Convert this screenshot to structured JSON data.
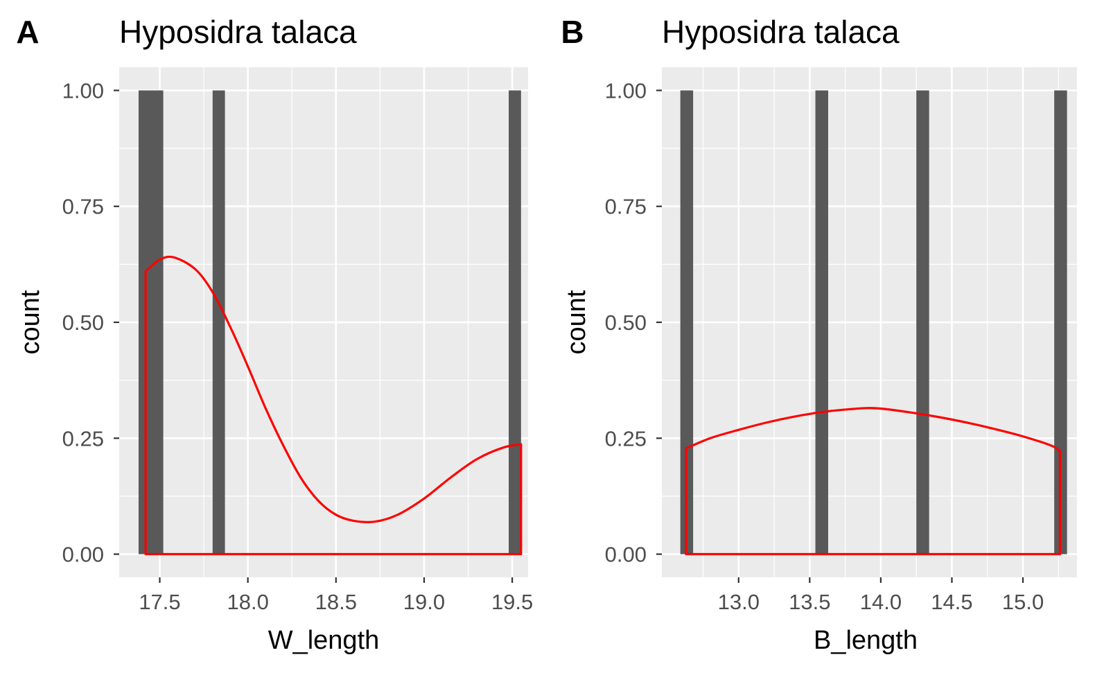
{
  "chart_data": [
    {
      "type": "bar",
      "tag": "A",
      "title": "Hyposidra talaca",
      "xlabel": "W_length",
      "ylabel": "count",
      "xlim": [
        17.27,
        19.59
      ],
      "ylim": [
        -0.05,
        1.05
      ],
      "x_ticks": [
        17.5,
        18.0,
        18.5,
        19.0,
        19.5
      ],
      "x_tick_labels": [
        "17.5",
        "18.0",
        "18.5",
        "19.0",
        "19.5"
      ],
      "y_ticks": [
        0.0,
        0.25,
        0.5,
        0.75,
        1.0
      ],
      "y_tick_labels": [
        "0.00",
        "0.25",
        "0.50",
        "0.75",
        "1.00"
      ],
      "grid": true,
      "bars": [
        {
          "x0": 17.38,
          "x1": 17.52,
          "count": 1
        },
        {
          "x0": 17.8,
          "x1": 17.87,
          "count": 1
        },
        {
          "x0": 19.48,
          "x1": 19.55,
          "count": 1
        }
      ],
      "density_color": "#ff0000",
      "bar_color": "#595959",
      "density": {
        "x": [
          17.42,
          17.5,
          17.58,
          17.7,
          17.8,
          17.9,
          18.0,
          18.1,
          18.2,
          18.3,
          18.4,
          18.5,
          18.6,
          18.72,
          18.85,
          19.0,
          19.15,
          19.3,
          19.45,
          19.55
        ],
        "y": [
          0.61,
          0.635,
          0.64,
          0.615,
          0.565,
          0.49,
          0.405,
          0.315,
          0.235,
          0.165,
          0.115,
          0.085,
          0.072,
          0.07,
          0.085,
          0.12,
          0.165,
          0.205,
          0.23,
          0.237
        ]
      }
    },
    {
      "type": "bar",
      "tag": "B",
      "title": "Hyposidra talaca",
      "xlabel": "B_length",
      "ylabel": "count",
      "xlim": [
        12.46,
        15.38
      ],
      "ylim": [
        -0.05,
        1.05
      ],
      "x_ticks": [
        13.0,
        13.5,
        14.0,
        14.5,
        15.0
      ],
      "x_tick_labels": [
        "13.0",
        "13.5",
        "14.0",
        "14.5",
        "15.0"
      ],
      "y_ticks": [
        0.0,
        0.25,
        0.5,
        0.75,
        1.0
      ],
      "y_tick_labels": [
        "0.00",
        "0.25",
        "0.50",
        "0.75",
        "1.00"
      ],
      "grid": true,
      "bars": [
        {
          "x0": 12.59,
          "x1": 12.68,
          "count": 1
        },
        {
          "x0": 13.54,
          "x1": 13.63,
          "count": 1
        },
        {
          "x0": 14.25,
          "x1": 14.34,
          "count": 1
        },
        {
          "x0": 15.22,
          "x1": 15.31,
          "count": 1
        }
      ],
      "density_color": "#ff0000",
      "bar_color": "#595959",
      "density": {
        "x": [
          12.63,
          12.8,
          13.0,
          13.2,
          13.4,
          13.6,
          13.8,
          13.9,
          14.0,
          14.2,
          14.4,
          14.6,
          14.8,
          15.0,
          15.2,
          15.26
        ],
        "y": [
          0.228,
          0.25,
          0.268,
          0.284,
          0.297,
          0.307,
          0.313,
          0.315,
          0.314,
          0.306,
          0.296,
          0.284,
          0.27,
          0.254,
          0.234,
          0.222
        ]
      }
    }
  ]
}
